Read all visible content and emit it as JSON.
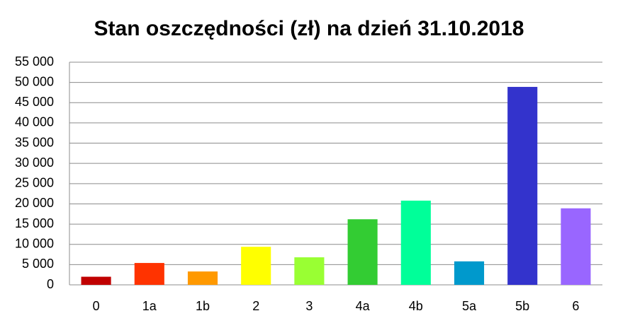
{
  "chart_data": {
    "type": "bar",
    "title": "Stan oszczędności (zł) na dzień 31.10.2018",
    "categories": [
      "0",
      "1a",
      "1b",
      "2",
      "3",
      "4a",
      "4b",
      "5a",
      "5b",
      "6"
    ],
    "values": [
      2000,
      5400,
      3300,
      9400,
      6800,
      16200,
      20800,
      5800,
      48900,
      18900
    ],
    "colors": [
      "#c00000",
      "#ff3300",
      "#ff9900",
      "#ffff00",
      "#99ff33",
      "#33cc33",
      "#00ff99",
      "#0099cc",
      "#3333cc",
      "#9966ff"
    ],
    "ylim": [
      0,
      55000
    ],
    "yticks": [
      {
        "value": 0,
        "label": "0"
      },
      {
        "value": 5000,
        "label": "5 000"
      },
      {
        "value": 10000,
        "label": "10 000"
      },
      {
        "value": 15000,
        "label": "15 000"
      },
      {
        "value": 20000,
        "label": "20 000"
      },
      {
        "value": 25000,
        "label": "25 000"
      },
      {
        "value": 30000,
        "label": "30 000"
      },
      {
        "value": 35000,
        "label": "35 000"
      },
      {
        "value": 40000,
        "label": "40 000"
      },
      {
        "value": 45000,
        "label": "45 000"
      },
      {
        "value": 50000,
        "label": "50 000"
      },
      {
        "value": 55000,
        "label": "55 000"
      }
    ],
    "grid": true
  }
}
